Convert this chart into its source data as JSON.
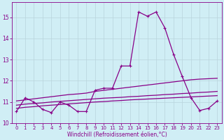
{
  "background_color": "#d0eef5",
  "grid_color": "#b8d4dc",
  "line_color": "#880088",
  "marker_size": 3,
  "line_width": 0.9,
  "xlabel": "Windchill (Refroidissement éolien,°C)",
  "xlim": [
    -0.5,
    23.5
  ],
  "ylim": [
    10.0,
    15.7
  ],
  "yticks": [
    10,
    11,
    12,
    13,
    14,
    15
  ],
  "xticks": [
    0,
    1,
    2,
    3,
    4,
    5,
    6,
    7,
    8,
    9,
    10,
    11,
    12,
    13,
    14,
    15,
    16,
    17,
    18,
    19,
    20,
    21,
    22,
    23
  ],
  "series1_x": [
    0,
    1,
    2,
    3,
    4,
    5,
    6,
    7,
    8,
    9,
    10,
    11,
    12,
    13,
    14,
    15,
    16,
    17,
    18,
    19,
    20,
    21,
    22,
    23
  ],
  "series1_y": [
    10.55,
    11.2,
    11.0,
    10.65,
    10.5,
    11.0,
    10.85,
    10.55,
    10.55,
    11.55,
    11.65,
    11.65,
    12.7,
    12.7,
    15.25,
    15.05,
    15.25,
    14.5,
    13.25,
    12.2,
    11.2,
    10.6,
    10.7,
    11.05
  ],
  "series2_x": [
    0,
    1,
    2,
    3,
    4,
    5,
    6,
    7,
    8,
    9,
    10,
    11,
    12,
    13,
    14,
    15,
    16,
    17,
    18,
    19,
    20,
    21,
    22,
    23
  ],
  "series2_y": [
    11.05,
    11.1,
    11.15,
    11.2,
    11.25,
    11.3,
    11.35,
    11.38,
    11.42,
    11.5,
    11.55,
    11.6,
    11.65,
    11.7,
    11.75,
    11.8,
    11.85,
    11.9,
    11.95,
    12.0,
    12.05,
    12.08,
    12.1,
    12.12
  ],
  "series3_x": [
    0,
    1,
    2,
    3,
    4,
    5,
    6,
    7,
    8,
    9,
    10,
    11,
    12,
    13,
    14,
    15,
    16,
    17,
    18,
    19,
    20,
    21,
    22,
    23
  ],
  "series3_y": [
    10.85,
    10.9,
    10.93,
    10.96,
    11.0,
    11.03,
    11.06,
    11.09,
    11.12,
    11.15,
    11.18,
    11.2,
    11.22,
    11.25,
    11.27,
    11.3,
    11.32,
    11.35,
    11.37,
    11.4,
    11.42,
    11.45,
    11.47,
    11.5
  ],
  "series4_x": [
    0,
    1,
    2,
    3,
    4,
    5,
    6,
    7,
    8,
    9,
    10,
    11,
    12,
    13,
    14,
    15,
    16,
    17,
    18,
    19,
    20,
    21,
    22,
    23
  ],
  "series4_y": [
    10.7,
    10.75,
    10.78,
    10.82,
    10.85,
    10.88,
    10.91,
    10.94,
    10.97,
    11.0,
    11.02,
    11.05,
    11.07,
    11.1,
    11.12,
    11.14,
    11.16,
    11.18,
    11.2,
    11.22,
    11.24,
    11.26,
    11.28,
    11.3
  ]
}
